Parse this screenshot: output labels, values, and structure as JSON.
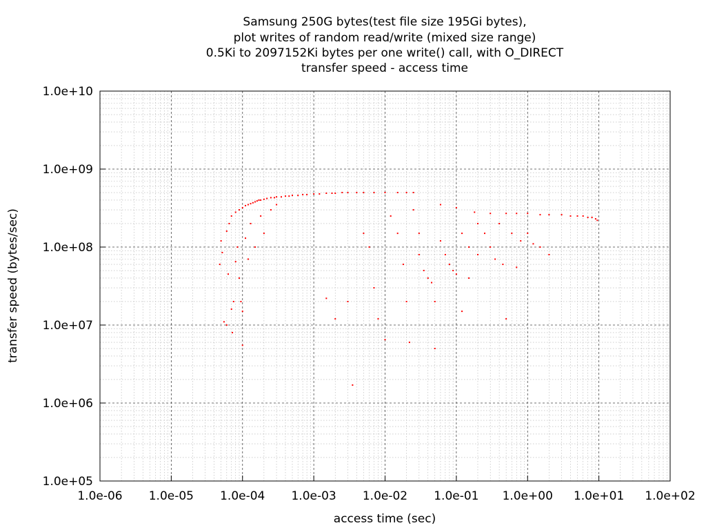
{
  "chart_data": {
    "type": "scatter",
    "title_lines": [
      "Samsung 250G bytes(test file size 195Gi bytes),",
      "plot writes of random read/write (mixed size range)",
      "0.5Ki to 2097152Ki bytes per one write() call, with O_DIRECT",
      "transfer speed - access time"
    ],
    "xlabel": "access time (sec)",
    "ylabel": "transfer speed (bytes/sec)",
    "x_scale": "log",
    "y_scale": "log",
    "xlim": [
      1e-06,
      100
    ],
    "ylim": [
      100000.0,
      10000000000.0
    ],
    "x_ticks": [
      {
        "value": 1e-06,
        "label": "1.0e-06"
      },
      {
        "value": 1e-05,
        "label": "1.0e-05"
      },
      {
        "value": 0.0001,
        "label": "1.0e-04"
      },
      {
        "value": 0.001,
        "label": "1.0e-03"
      },
      {
        "value": 0.01,
        "label": "1.0e-02"
      },
      {
        "value": 0.1,
        "label": "1.0e-01"
      },
      {
        "value": 1,
        "label": "1.0e+00"
      },
      {
        "value": 10,
        "label": "1.0e+01"
      },
      {
        "value": 100,
        "label": "1.0e+02"
      }
    ],
    "y_ticks": [
      {
        "value": 100000.0,
        "label": "1.0e+05"
      },
      {
        "value": 1000000.0,
        "label": "1.0e+06"
      },
      {
        "value": 10000000.0,
        "label": "1.0e+07"
      },
      {
        "value": 100000000.0,
        "label": "1.0e+08"
      },
      {
        "value": 1000000000.0,
        "label": "1.0e+09"
      },
      {
        "value": 10000000000.0,
        "label": "1.0e+10"
      }
    ],
    "grid": true,
    "minor_grid": true,
    "color": "#ff0000",
    "series": [
      {
        "points": [
          [
            4.8e-05,
            60000000.0
          ],
          [
            5e-05,
            120000000.0
          ],
          [
            5.2e-05,
            85000000.0
          ],
          [
            5.5e-05,
            11000000.0
          ],
          [
            6e-05,
            10000000.0
          ],
          [
            6e-05,
            160000000.0
          ],
          [
            6.3e-05,
            45000000.0
          ],
          [
            6.5e-05,
            200000000.0
          ],
          [
            7e-05,
            250000000.0
          ],
          [
            7e-05,
            16000000.0
          ],
          [
            7.2e-05,
            8000000.0
          ],
          [
            7.5e-05,
            20000000.0
          ],
          [
            8e-05,
            280000000.0
          ],
          [
            8e-05,
            65000000.0
          ],
          [
            8.5e-05,
            100000000.0
          ],
          [
            9e-05,
            300000000.0
          ],
          [
            9e-05,
            40000000.0
          ],
          [
            9.5e-05,
            20000000.0
          ],
          [
            0.0001,
            320000000.0
          ],
          [
            0.0001,
            5500000.0
          ],
          [
            0.0001,
            15000000.0
          ],
          [
            0.00011,
            340000000.0
          ],
          [
            0.00011,
            130000000.0
          ],
          [
            0.00012,
            350000000.0
          ],
          [
            0.00012,
            70000000.0
          ],
          [
            0.00013,
            360000000.0
          ],
          [
            0.00013,
            200000000.0
          ],
          [
            0.00014,
            370000000.0
          ],
          [
            0.00015,
            380000000.0
          ],
          [
            0.00015,
            100000000.0
          ],
          [
            0.00016,
            390000000.0
          ],
          [
            0.00017,
            400000000.0
          ],
          [
            0.00018,
            400000000.0
          ],
          [
            0.00018,
            250000000.0
          ],
          [
            0.0002,
            410000000.0
          ],
          [
            0.0002,
            150000000.0
          ],
          [
            0.00022,
            420000000.0
          ],
          [
            0.00025,
            430000000.0
          ],
          [
            0.00025,
            300000000.0
          ],
          [
            0.00028,
            430000000.0
          ],
          [
            0.0003,
            440000000.0
          ],
          [
            0.0003,
            350000000.0
          ],
          [
            0.00035,
            440000000.0
          ],
          [
            0.0004,
            450000000.0
          ],
          [
            0.00045,
            450000000.0
          ],
          [
            0.0005,
            460000000.0
          ],
          [
            0.0006,
            460000000.0
          ],
          [
            0.0007,
            470000000.0
          ],
          [
            0.0008,
            470000000.0
          ],
          [
            0.001,
            480000000.0
          ],
          [
            0.0012,
            480000000.0
          ],
          [
            0.0015,
            490000000.0
          ],
          [
            0.0018,
            490000000.0
          ],
          [
            0.002,
            490000000.0
          ],
          [
            0.0025,
            500000000.0
          ],
          [
            0.003,
            500000000.0
          ],
          [
            0.004,
            500000000.0
          ],
          [
            0.005,
            500000000.0
          ],
          [
            0.007,
            500000000.0
          ],
          [
            0.01,
            500000000.0
          ],
          [
            0.015,
            500000000.0
          ],
          [
            0.02,
            500000000.0
          ],
          [
            0.025,
            500000000.0
          ],
          [
            0.0015,
            22000000.0
          ],
          [
            0.002,
            12000000.0
          ],
          [
            0.003,
            20000000.0
          ],
          [
            0.0035,
            1700000.0
          ],
          [
            0.005,
            150000000.0
          ],
          [
            0.006,
            100000000.0
          ],
          [
            0.007,
            30000000.0
          ],
          [
            0.008,
            12000000.0
          ],
          [
            0.01,
            6500000.0
          ],
          [
            0.012,
            250000000.0
          ],
          [
            0.015,
            150000000.0
          ],
          [
            0.018,
            60000000.0
          ],
          [
            0.02,
            20000000.0
          ],
          [
            0.022,
            6000000.0
          ],
          [
            0.025,
            300000000.0
          ],
          [
            0.03,
            150000000.0
          ],
          [
            0.03,
            80000000.0
          ],
          [
            0.035,
            50000000.0
          ],
          [
            0.04,
            40000000.0
          ],
          [
            0.045,
            35000000.0
          ],
          [
            0.05,
            5000000.0
          ],
          [
            0.05,
            20000000.0
          ],
          [
            0.06,
            350000000.0
          ],
          [
            0.06,
            120000000.0
          ],
          [
            0.07,
            80000000.0
          ],
          [
            0.08,
            60000000.0
          ],
          [
            0.09,
            50000000.0
          ],
          [
            0.1,
            320000000.0
          ],
          [
            0.1,
            45000000.0
          ],
          [
            0.12,
            150000000.0
          ],
          [
            0.12,
            15000000.0
          ],
          [
            0.15,
            100000000.0
          ],
          [
            0.15,
            40000000.0
          ],
          [
            0.18,
            280000000.0
          ],
          [
            0.2,
            200000000.0
          ],
          [
            0.2,
            80000000.0
          ],
          [
            0.25,
            150000000.0
          ],
          [
            0.3,
            270000000.0
          ],
          [
            0.3,
            100000000.0
          ],
          [
            0.35,
            70000000.0
          ],
          [
            0.4,
            200000000.0
          ],
          [
            0.45,
            60000000.0
          ],
          [
            0.5,
            270000000.0
          ],
          [
            0.5,
            12000000.0
          ],
          [
            0.6,
            150000000.0
          ],
          [
            0.7,
            270000000.0
          ],
          [
            0.7,
            55000000.0
          ],
          [
            0.8,
            120000000.0
          ],
          [
            1.0,
            270000000.0
          ],
          [
            1.0,
            150000000.0
          ],
          [
            1.2,
            110000000.0
          ],
          [
            1.5,
            100000000.0
          ],
          [
            1.5,
            260000000.0
          ],
          [
            2.0,
            260000000.0
          ],
          [
            2.0,
            80000000.0
          ],
          [
            3.0,
            260000000.0
          ],
          [
            4.0,
            250000000.0
          ],
          [
            5.0,
            250000000.0
          ],
          [
            6.0,
            250000000.0
          ],
          [
            7.0,
            240000000.0
          ],
          [
            8.0,
            240000000.0
          ],
          [
            9.0,
            230000000.0
          ],
          [
            9.5,
            220000000.0
          ]
        ]
      }
    ]
  }
}
